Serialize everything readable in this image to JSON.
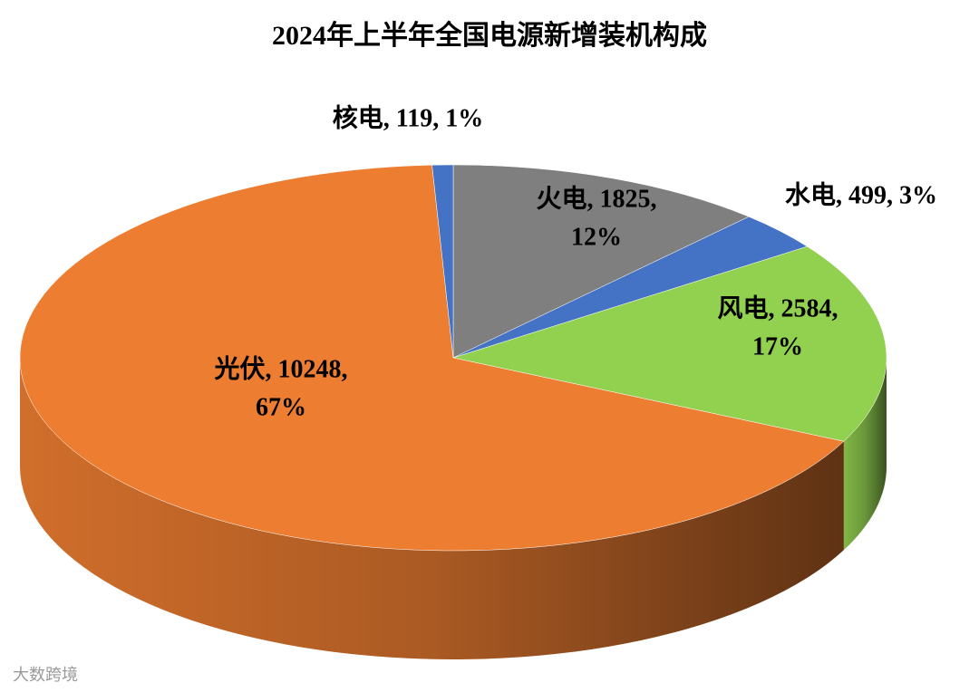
{
  "chart_data": {
    "type": "pie3d",
    "title": "2024年上半年全国电源新增装机构成",
    "categories": [
      "火电",
      "水电",
      "风电",
      "光伏",
      "核电"
    ],
    "values": [
      1825,
      499,
      2584,
      10248,
      119
    ],
    "colors": [
      "#7f7f7f",
      "#4472c4",
      "#92d050",
      "#ed7d31",
      "#4472c4"
    ],
    "data_labels": [
      [
        "火电, 1825,",
        "12%"
      ],
      [
        "水电, 499, 3%"
      ],
      [
        "风电, 2584,",
        "17%"
      ],
      [
        "光伏, 10248,",
        "67%"
      ],
      [
        "核电, 119, 1%"
      ]
    ],
    "start_angle": -90,
    "watermark": "大数跨境"
  }
}
